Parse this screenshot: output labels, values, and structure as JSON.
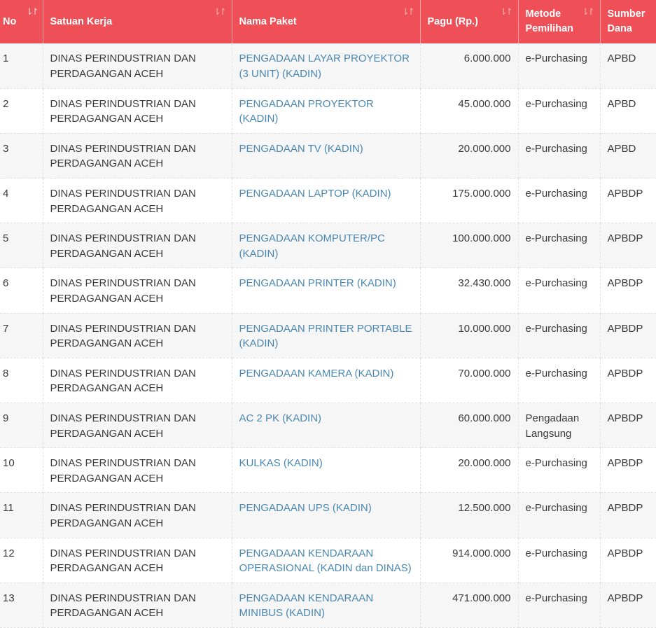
{
  "colors": {
    "header": "#ef5058",
    "link": "#4a88b2"
  },
  "columns": [
    "No",
    "Satuan Kerja",
    "Nama Paket",
    "Pagu (Rp.)",
    "Metode Pemilihan",
    "Sumber Dana"
  ],
  "rows": [
    {
      "no": "1",
      "satker": "DINAS PERINDUSTRIAN DAN PERDAGANGAN ACEH",
      "paket": "PENGADAAN LAYAR PROYEKTOR (3 UNIT) (KADIN)",
      "pagu": "6.000.000",
      "metode": "e-Purchasing",
      "dana": "APBD"
    },
    {
      "no": "2",
      "satker": "DINAS PERINDUSTRIAN DAN PERDAGANGAN ACEH",
      "paket": "PENGADAAN PROYEKTOR (KADIN)",
      "pagu": "45.000.000",
      "metode": "e-Purchasing",
      "dana": "APBD"
    },
    {
      "no": "3",
      "satker": "DINAS PERINDUSTRIAN DAN PERDAGANGAN ACEH",
      "paket": "PENGADAAN TV (KADIN)",
      "pagu": "20.000.000",
      "metode": "e-Purchasing",
      "dana": "APBD"
    },
    {
      "no": "4",
      "satker": "DINAS PERINDUSTRIAN DAN PERDAGANGAN ACEH",
      "paket": "PENGADAAN LAPTOP (KADIN)",
      "pagu": "175.000.000",
      "metode": "e-Purchasing",
      "dana": "APBDP"
    },
    {
      "no": "5",
      "satker": "DINAS PERINDUSTRIAN DAN PERDAGANGAN ACEH",
      "paket": "PENGADAAN KOMPUTER/PC (KADIN)",
      "pagu": "100.000.000",
      "metode": "e-Purchasing",
      "dana": "APBDP"
    },
    {
      "no": "6",
      "satker": "DINAS PERINDUSTRIAN DAN PERDAGANGAN ACEH",
      "paket": "PENGADAAN PRINTER (KADIN)",
      "pagu": "32.430.000",
      "metode": "e-Purchasing",
      "dana": "APBDP"
    },
    {
      "no": "7",
      "satker": "DINAS PERINDUSTRIAN DAN PERDAGANGAN ACEH",
      "paket": "PENGADAAN PRINTER PORTABLE (KADIN)",
      "pagu": "10.000.000",
      "metode": "e-Purchasing",
      "dana": "APBDP"
    },
    {
      "no": "8",
      "satker": "DINAS PERINDUSTRIAN DAN PERDAGANGAN ACEH",
      "paket": "PENGADAAN KAMERA (KADIN)",
      "pagu": "70.000.000",
      "metode": "e-Purchasing",
      "dana": "APBDP"
    },
    {
      "no": "9",
      "satker": "DINAS PERINDUSTRIAN DAN PERDAGANGAN ACEH",
      "paket": "AC 2 PK (KADIN)",
      "pagu": "60.000.000",
      "metode": "Pengadaan Langsung",
      "dana": "APBDP"
    },
    {
      "no": "10",
      "satker": "DINAS PERINDUSTRIAN DAN PERDAGANGAN ACEH",
      "paket": "KULKAS (KADIN)",
      "pagu": "20.000.000",
      "metode": "e-Purchasing",
      "dana": "APBDP"
    },
    {
      "no": "11",
      "satker": "DINAS PERINDUSTRIAN DAN PERDAGANGAN ACEH",
      "paket": "PENGADAAN UPS (KADIN)",
      "pagu": "12.500.000",
      "metode": "e-Purchasing",
      "dana": "APBDP"
    },
    {
      "no": "12",
      "satker": "DINAS PERINDUSTRIAN DAN PERDAGANGAN ACEH",
      "paket": "PENGADAAN KENDARAAN OPERASIONAL (KADIN dan DINAS)",
      "pagu": "914.000.000",
      "metode": "e-Purchasing",
      "dana": "APBDP"
    },
    {
      "no": "13",
      "satker": "DINAS PERINDUSTRIAN DAN PERDAGANGAN ACEH",
      "paket": "PENGADAAN KENDARAAN MINIBUS (KADIN)",
      "pagu": "471.000.000",
      "metode": "e-Purchasing",
      "dana": "APBDP"
    }
  ]
}
